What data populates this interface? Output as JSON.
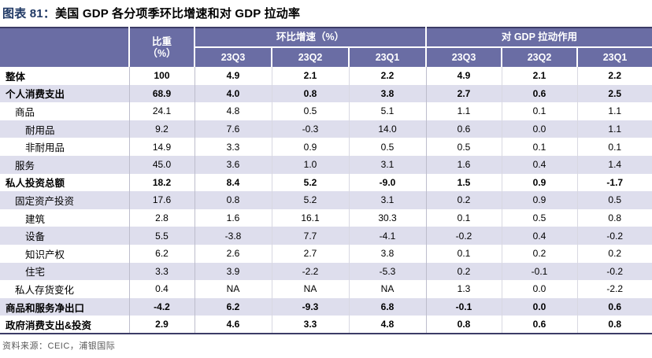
{
  "title": {
    "figure_label": "图表 81：",
    "text": "美国 GDP 各分项季环比增速和对 GDP 拉动率"
  },
  "chart_data": {
    "type": "table",
    "title": "美国 GDP 各分项季环比增速和对 GDP 拉动率",
    "header": {
      "weight_line1": "比重",
      "weight_line2": "（%）",
      "group_qoq": "环比增速（%）",
      "group_contrib": "对 GDP 拉动作用"
    },
    "quarters": [
      "23Q3",
      "23Q2",
      "23Q1"
    ],
    "rows": [
      {
        "label": "整体",
        "indent": 0,
        "bold": true,
        "weight": "100",
        "qoq": [
          "4.9",
          "2.1",
          "2.2"
        ],
        "contrib": [
          "4.9",
          "2.1",
          "2.2"
        ]
      },
      {
        "label": "个人消费支出",
        "indent": 0,
        "bold": true,
        "weight": "68.9",
        "qoq": [
          "4.0",
          "0.8",
          "3.8"
        ],
        "contrib": [
          "2.7",
          "0.6",
          "2.5"
        ]
      },
      {
        "label": "商品",
        "indent": 1,
        "bold": false,
        "weight": "24.1",
        "qoq": [
          "4.8",
          "0.5",
          "5.1"
        ],
        "contrib": [
          "1.1",
          "0.1",
          "1.1"
        ]
      },
      {
        "label": "耐用品",
        "indent": 2,
        "bold": false,
        "weight": "9.2",
        "qoq": [
          "7.6",
          "-0.3",
          "14.0"
        ],
        "contrib": [
          "0.6",
          "0.0",
          "1.1"
        ]
      },
      {
        "label": "非耐用品",
        "indent": 2,
        "bold": false,
        "weight": "14.9",
        "qoq": [
          "3.3",
          "0.9",
          "0.5"
        ],
        "contrib": [
          "0.5",
          "0.1",
          "0.1"
        ]
      },
      {
        "label": "服务",
        "indent": 1,
        "bold": false,
        "weight": "45.0",
        "qoq": [
          "3.6",
          "1.0",
          "3.1"
        ],
        "contrib": [
          "1.6",
          "0.4",
          "1.4"
        ]
      },
      {
        "label": "私人投资总额",
        "indent": 0,
        "bold": true,
        "weight": "18.2",
        "qoq": [
          "8.4",
          "5.2",
          "-9.0"
        ],
        "contrib": [
          "1.5",
          "0.9",
          "-1.7"
        ]
      },
      {
        "label": "固定资产投资",
        "indent": 1,
        "bold": false,
        "weight": "17.6",
        "qoq": [
          "0.8",
          "5.2",
          "3.1"
        ],
        "contrib": [
          "0.2",
          "0.9",
          "0.5"
        ]
      },
      {
        "label": "建筑",
        "indent": 2,
        "bold": false,
        "weight": "2.8",
        "qoq": [
          "1.6",
          "16.1",
          "30.3"
        ],
        "contrib": [
          "0.1",
          "0.5",
          "0.8"
        ]
      },
      {
        "label": "设备",
        "indent": 2,
        "bold": false,
        "weight": "5.5",
        "qoq": [
          "-3.8",
          "7.7",
          "-4.1"
        ],
        "contrib": [
          "-0.2",
          "0.4",
          "-0.2"
        ]
      },
      {
        "label": "知识产权",
        "indent": 2,
        "bold": false,
        "weight": "6.2",
        "qoq": [
          "2.6",
          "2.7",
          "3.8"
        ],
        "contrib": [
          "0.1",
          "0.2",
          "0.2"
        ]
      },
      {
        "label": "住宅",
        "indent": 2,
        "bold": false,
        "weight": "3.3",
        "qoq": [
          "3.9",
          "-2.2",
          "-5.3"
        ],
        "contrib": [
          "0.2",
          "-0.1",
          "-0.2"
        ]
      },
      {
        "label": "私人存货变化",
        "indent": 1,
        "bold": false,
        "weight": "0.4",
        "qoq": [
          "NA",
          "NA",
          "NA"
        ],
        "contrib": [
          "1.3",
          "0.0",
          "-2.2"
        ]
      },
      {
        "label": "商品和服务净出口",
        "indent": 0,
        "bold": true,
        "weight": "-4.2",
        "qoq": [
          "6.2",
          "-9.3",
          "6.8"
        ],
        "contrib": [
          "-0.1",
          "0.0",
          "0.6"
        ]
      },
      {
        "label": "政府消费支出&投资",
        "indent": 0,
        "bold": true,
        "weight": "2.9",
        "qoq": [
          "4.6",
          "3.3",
          "4.8"
        ],
        "contrib": [
          "0.8",
          "0.6",
          "0.8"
        ]
      }
    ]
  },
  "footer": {
    "source": "资料来源：CEIC，浦银国际"
  },
  "colors": {
    "header_bg": "#6a6da4",
    "stripe": "#dedeed",
    "title_accent": "#1f3864",
    "border_dark": "#3c3c66",
    "footer_text": "#595959"
  }
}
